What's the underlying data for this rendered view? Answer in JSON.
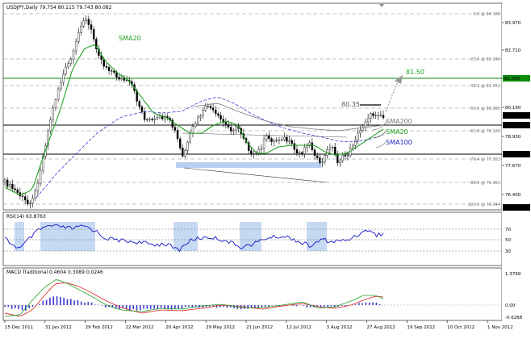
{
  "chart": {
    "header": "USDJPY,Daily  79.754 80.115 79.743 80.082",
    "colors": {
      "price": "#000000",
      "sma20": "#22a022",
      "sma100": "#2323c8",
      "sma200": "#7a7a7a",
      "rsi": "#1414c8",
      "macd_up": "#3a3ad0",
      "signal": "#d62020",
      "fillzone": "#b8cff0"
    }
  },
  "main": {
    "price_labels": [
      "83.970",
      "82.710",
      "81.450",
      "80.190",
      "78.930",
      "77.670",
      "76.400"
    ],
    "levels": [
      {
        "label": "0.0 @ 84.168",
        "kind": "fib"
      },
      {
        "label": "23.6 @ 82.246",
        "kind": "fib"
      },
      {
        "label": "38.2 @ 81.052",
        "kind": "fib"
      },
      {
        "label": "50.0 @ 80.085",
        "kind": "fib"
      },
      {
        "label": "61.8 @ 79.126",
        "kind": "fib"
      },
      {
        "label": "76.4 @ 77.953",
        "kind": "fib"
      },
      {
        "label": "88.6 @ 76.961",
        "kind": "fib"
      },
      {
        "label": "100.0 @ 76.044",
        "kind": "fib"
      }
    ],
    "boxed_prices": [
      {
        "label": "81.500",
        "color": "#0a8a0a"
      },
      {
        "label": "80.082",
        "color": "#000000"
      },
      {
        "label": "79.526",
        "color": "#000000"
      },
      {
        "label": "78.263",
        "color": "#000000"
      },
      {
        "label": "76.000",
        "color": "#000000"
      }
    ],
    "annotations": {
      "target": "81.50",
      "high": "80.35",
      "sma200": "SMA200",
      "sma20_right": "SMA20",
      "sma100": "SMA100",
      "sma20_top": "SMA20"
    }
  },
  "rsi": {
    "title": "RSI(14) 63.8763",
    "levels": [
      "70",
      "50",
      "30"
    ],
    "current": 63.88
  },
  "macd": {
    "title": "MACD Traditional 0.4604 0.3089 0.0246",
    "levels": [
      "1.3799",
      "0.00",
      "-0.6268"
    ]
  },
  "xaxis": {
    "labels": [
      "15 Dec 2011",
      "31 Jan 2012",
      "29 Feb 2012",
      "22 Mar 2012",
      "20 Apr 2012",
      "29 May 2012",
      "21 Jun 2012",
      "12 Jul 2012",
      "3 Aug 2012",
      "27 Aug 2012",
      "19 Sep 2012",
      "10 Oct 2012",
      "1 Nov 2012"
    ]
  }
}
